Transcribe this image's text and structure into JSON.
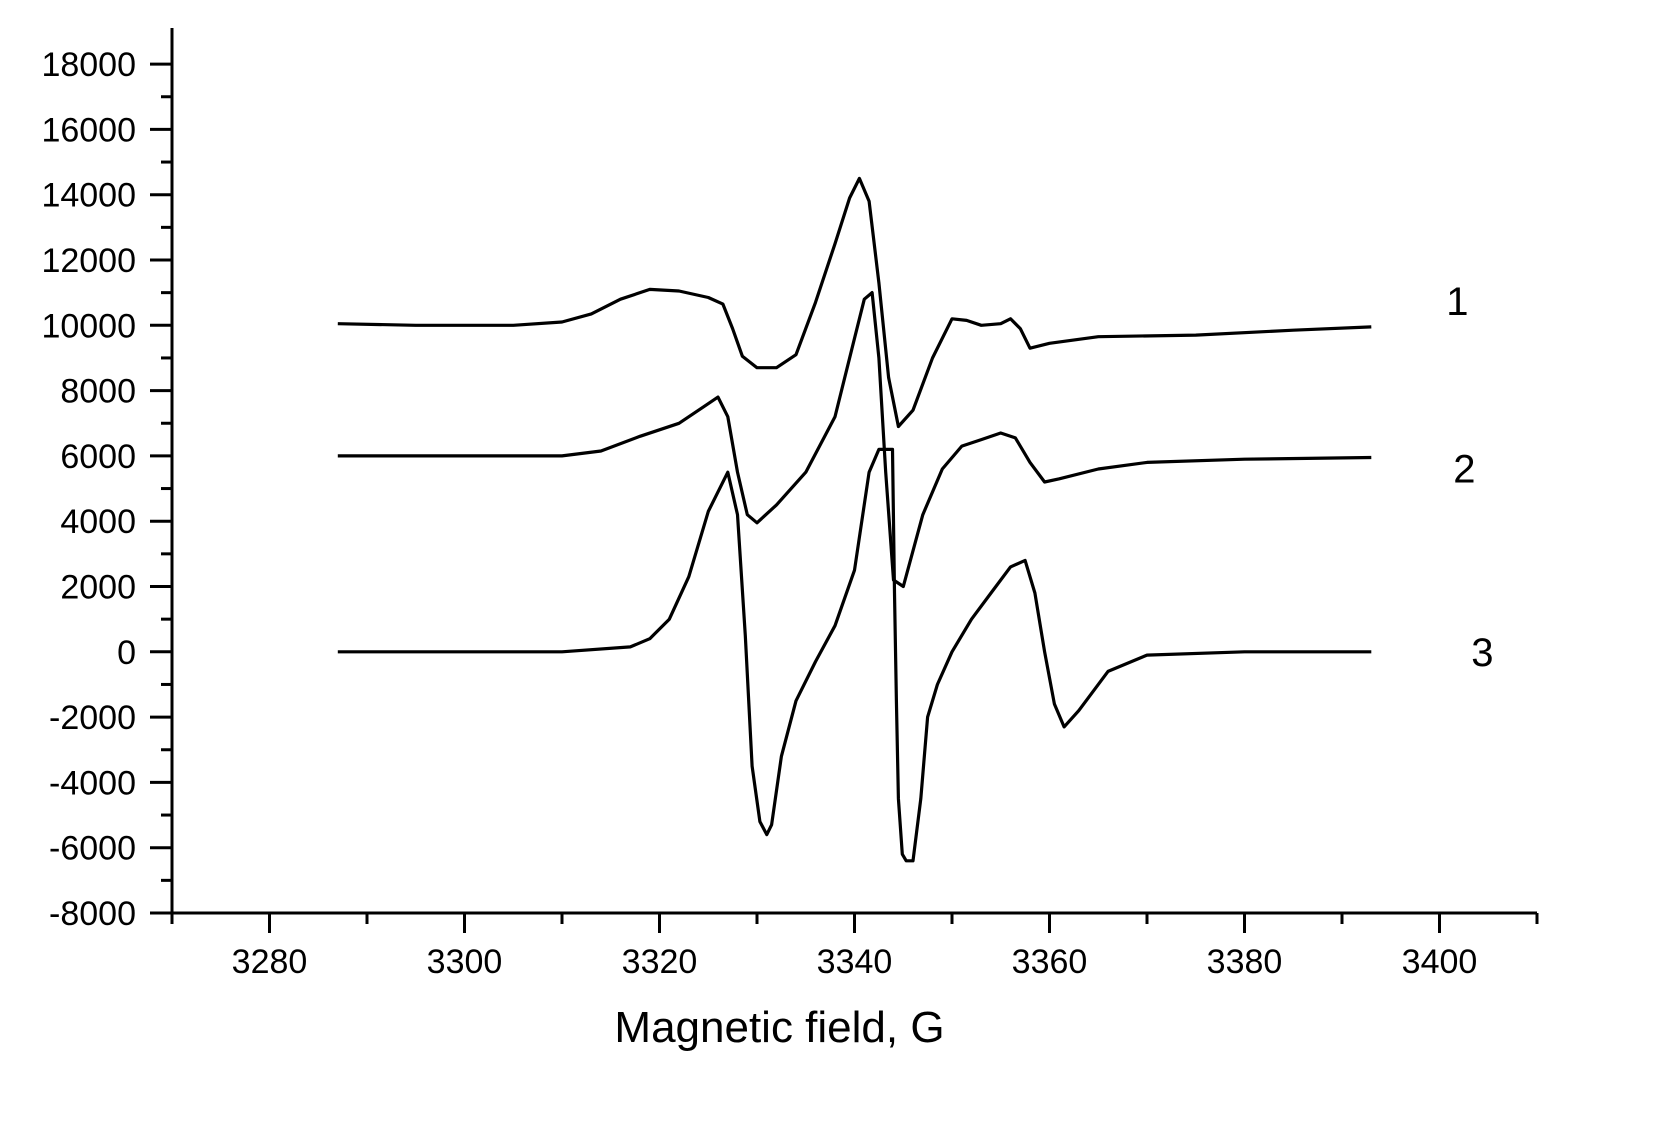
{
  "chart_data": {
    "type": "line",
    "title": "",
    "xlabel": "Magnetic field, G",
    "ylabel": "",
    "xlim": [
      3270,
      3410
    ],
    "ylim": [
      -8000,
      19000
    ],
    "xticks": [
      3280,
      3300,
      3320,
      3340,
      3360,
      3380,
      3400
    ],
    "yticks": [
      -8000,
      -6000,
      -4000,
      -2000,
      0,
      2000,
      4000,
      6000,
      8000,
      10000,
      12000,
      14000,
      16000,
      18000
    ],
    "grid": false,
    "legend": "none",
    "series": [
      {
        "name": "1",
        "x": [
          3287,
          3295,
          3305,
          3310,
          3313,
          3316,
          3319,
          3322,
          3325,
          3326.5,
          3327.5,
          3328.5,
          3330,
          3332,
          3334,
          3336,
          3338,
          3339.5,
          3340.5,
          3341.5,
          3342.5,
          3343.5,
          3344.5,
          3346,
          3348,
          3350,
          3351.5,
          3353,
          3355,
          3356,
          3357,
          3358,
          3360,
          3365,
          3375,
          3385,
          3393
        ],
        "values": [
          10050,
          10000,
          10000,
          10100,
          10350,
          10800,
          11100,
          11050,
          10850,
          10650,
          9900,
          9050,
          8700,
          8700,
          9100,
          10700,
          12500,
          13900,
          14500,
          13800,
          11300,
          8400,
          6900,
          7400,
          9000,
          10200,
          10150,
          10000,
          10050,
          10200,
          9900,
          9300,
          9450,
          9650,
          9700,
          9850,
          9950
        ]
      },
      {
        "name": "2",
        "x": [
          3287,
          3300,
          3310,
          3314,
          3318,
          3322,
          3324.5,
          3326,
          3327,
          3328,
          3329,
          3330,
          3332,
          3335,
          3338,
          3340,
          3341,
          3341.8,
          3342.5,
          3343.2,
          3344,
          3345,
          3347,
          3349,
          3351,
          3353,
          3355,
          3356.5,
          3358,
          3359.5,
          3361,
          3365,
          3370,
          3380,
          3393
        ],
        "values": [
          6000,
          6000,
          6000,
          6150,
          6600,
          7000,
          7500,
          7800,
          7200,
          5500,
          4200,
          3950,
          4500,
          5500,
          7200,
          9600,
          10800,
          11000,
          9000,
          5500,
          2200,
          2000,
          4200,
          5600,
          6300,
          6500,
          6700,
          6550,
          5800,
          5200,
          5300,
          5600,
          5800,
          5900,
          5950
        ]
      },
      {
        "name": "3",
        "x": [
          3287,
          3300,
          3310,
          3317,
          3319,
          3321,
          3323,
          3325,
          3327,
          3328,
          3328.8,
          3329.5,
          3330.3,
          3331,
          3331.5,
          3332.5,
          3334,
          3336,
          3338,
          3340,
          3341.5,
          3342.5,
          3343.2,
          3343.9,
          3344.1,
          3344.3,
          3344.5,
          3344.9,
          3345.3,
          3346,
          3346.8,
          3347.5,
          3348.5,
          3350,
          3352,
          3354,
          3356,
          3357.5,
          3358.5,
          3359.5,
          3360.5,
          3361.5,
          3363,
          3366,
          3370,
          3380,
          3393
        ],
        "values": [
          0,
          0,
          0,
          150,
          400,
          1000,
          2300,
          4300,
          5500,
          4200,
          500,
          -3500,
          -5200,
          -5600,
          -5300,
          -3200,
          -1500,
          -300,
          800,
          2500,
          5500,
          6200,
          6200,
          6200,
          1800,
          -1500,
          -4500,
          -6200,
          -6400,
          -6400,
          -4500,
          -2000,
          -1000,
          0,
          1000,
          1800,
          2600,
          2800,
          1800,
          0,
          -1600,
          -2300,
          -1800,
          -600,
          -100,
          0,
          0
        ]
      }
    ],
    "series_labels": [
      "1",
      "2",
      "3"
    ]
  }
}
